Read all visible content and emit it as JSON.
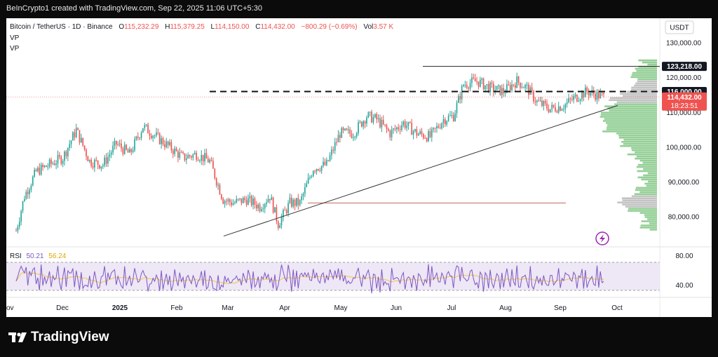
{
  "header": {
    "attribution": "BeInCrypto1 created with TradingView.com, Sep 22, 2025 11:06 UTC+5:30"
  },
  "legend": {
    "symbol": "Bitcoin / TetherUS · 1D · Binance",
    "o_label": "O",
    "o_value": "115,232.29",
    "h_label": "H",
    "h_value": "115,379.25",
    "l_label": "L",
    "l_value": "114,150.00",
    "c_label": "C",
    "c_value": "114,432.00",
    "change": "−800.29 (−0.69%)",
    "vol_label": "Vol",
    "vol_value": "3.57 K",
    "vp1": "VP",
    "vp2": "VP"
  },
  "currency": "USDT",
  "price_axis": {
    "ticks": [
      "80,000.00",
      "90,000.00",
      "100,000.00",
      "110,000.00",
      "120,000.00",
      "130,000.00"
    ],
    "badge_resistance": "123,218.00",
    "badge_level": "116,000.00",
    "badge_price": "114,432.00",
    "badge_countdown": "18:23:51"
  },
  "time_axis": [
    "ov",
    "Dec",
    "2025",
    "Feb",
    "Mar",
    "Apr",
    "May",
    "Jun",
    "Jul",
    "Aug",
    "Sep",
    "Oct"
  ],
  "rsi": {
    "label": "RSI",
    "value1": "50.21",
    "value2": "56.24",
    "ticks": [
      "80.00",
      "40.00"
    ]
  },
  "colors": {
    "up": "#26a69a",
    "down": "#ef5350",
    "rsi_line": "#7e57c2",
    "rsi_ma": "#f5c542",
    "vp_green": "#81c784",
    "vp_gray": "#b8b8b8"
  },
  "footer": {
    "brand": "TradingView"
  },
  "chart_data": {
    "type": "candlestick",
    "interval": "1D",
    "ylim": [
      73000,
      131000
    ],
    "price_anchors": [
      [
        0,
        76000
      ],
      [
        5,
        86000
      ],
      [
        12,
        93000
      ],
      [
        20,
        95000
      ],
      [
        28,
        97000
      ],
      [
        36,
        105000
      ],
      [
        44,
        96000
      ],
      [
        52,
        95000
      ],
      [
        60,
        101000
      ],
      [
        68,
        98000
      ],
      [
        76,
        106000
      ],
      [
        84,
        103000
      ],
      [
        92,
        100000
      ],
      [
        100,
        97000
      ],
      [
        108,
        98000
      ],
      [
        116,
        96000
      ],
      [
        124,
        85000
      ],
      [
        130,
        84000
      ],
      [
        138,
        85000
      ],
      [
        146,
        83000
      ],
      [
        152,
        86000
      ],
      [
        157,
        78000
      ],
      [
        164,
        84000
      ],
      [
        170,
        84000
      ],
      [
        178,
        94000
      ],
      [
        186,
        95000
      ],
      [
        194,
        104000
      ],
      [
        202,
        104000
      ],
      [
        210,
        109000
      ],
      [
        216,
        108000
      ],
      [
        224,
        104000
      ],
      [
        232,
        107000
      ],
      [
        240,
        104000
      ],
      [
        248,
        103000
      ],
      [
        256,
        108000
      ],
      [
        262,
        109000
      ],
      [
        268,
        118000
      ],
      [
        276,
        119000
      ],
      [
        284,
        117000
      ],
      [
        292,
        116000
      ],
      [
        300,
        119000
      ],
      [
        306,
        117000
      ],
      [
        312,
        113000
      ],
      [
        320,
        111000
      ],
      [
        328,
        112000
      ],
      [
        334,
        114000
      ],
      [
        342,
        116000
      ],
      [
        348,
        115000
      ],
      [
        352,
        114432
      ]
    ],
    "levels": {
      "resistance": 123218,
      "dashed": 116000,
      "support": 84000,
      "last": 114432
    },
    "trendline": {
      "from_price": 74500,
      "to_price": 112000
    },
    "rsi_ylim": [
      30,
      80
    ]
  }
}
